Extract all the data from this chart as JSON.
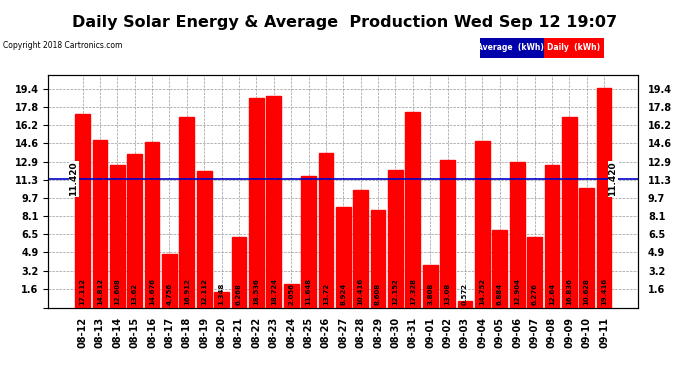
{
  "title": "Daily Solar Energy & Average  Production Wed Sep 12 19:07",
  "copyright": "Copyright 2018 Cartronics.com",
  "average_label": "Average  (kWh)",
  "daily_label": "Daily  (kWh)",
  "average_value": 11.42,
  "avg_label_text": "11.420",
  "ylim": [
    0,
    20.6
  ],
  "yticks": [
    0.0,
    1.6,
    3.2,
    4.9,
    6.5,
    8.1,
    9.7,
    11.3,
    12.9,
    14.6,
    16.2,
    17.8,
    19.4
  ],
  "categories": [
    "08-12",
    "08-13",
    "08-14",
    "08-15",
    "08-16",
    "08-17",
    "08-18",
    "08-19",
    "08-20",
    "08-21",
    "08-22",
    "08-23",
    "08-24",
    "08-25",
    "08-26",
    "08-27",
    "08-28",
    "08-29",
    "08-30",
    "08-31",
    "09-01",
    "09-02",
    "09-03",
    "09-04",
    "09-05",
    "09-06",
    "09-07",
    "09-08",
    "09-09",
    "09-10",
    "09-11"
  ],
  "values": [
    17.112,
    14.812,
    12.608,
    13.62,
    14.676,
    4.756,
    16.912,
    12.112,
    1.348,
    6.268,
    18.536,
    18.724,
    2.056,
    11.648,
    13.72,
    8.924,
    10.416,
    8.608,
    12.152,
    17.328,
    3.808,
    13.08,
    0.572,
    14.752,
    6.884,
    12.904,
    6.276,
    12.64,
    16.836,
    10.628,
    19.416
  ],
  "bar_color": "#ff0000",
  "avg_line_color": "#0000cc",
  "background_color": "#ffffff",
  "grid_color": "#999999",
  "title_fontsize": 11.5,
  "tick_fontsize": 7,
  "val_fontsize": 5.0,
  "legend_bg": "#0000aa",
  "legend_avg_color": "#0000cc",
  "legend_daily_color": "#ff0000"
}
